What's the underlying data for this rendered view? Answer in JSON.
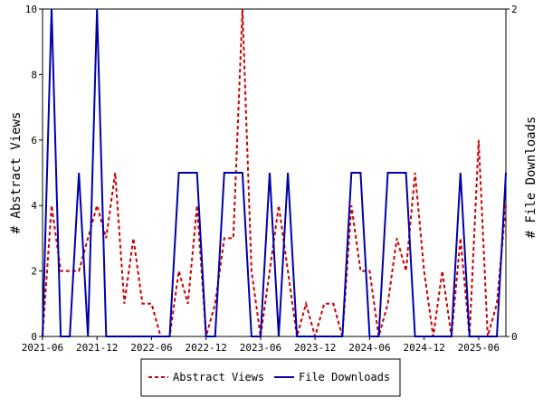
{
  "chart_data": {
    "type": "line",
    "ylabel_left": "# Abstract Views",
    "ylabel_right": "# File Downloads",
    "ylim_left": [
      0,
      10
    ],
    "ylim_right": [
      0,
      2
    ],
    "x_range": [
      0,
      51
    ],
    "yticks_left": [
      0,
      2,
      4,
      6,
      8,
      10
    ],
    "yticks_right": [
      0,
      2
    ],
    "xticks": [
      {
        "index": 0,
        "label": "2021-06"
      },
      {
        "index": 6,
        "label": "2021-12"
      },
      {
        "index": 12,
        "label": "2022-06"
      },
      {
        "index": 18,
        "label": "2022-12"
      },
      {
        "index": 24,
        "label": "2023-06"
      },
      {
        "index": 30,
        "label": "2023-12"
      },
      {
        "index": 36,
        "label": "2024-06"
      },
      {
        "index": 42,
        "label": "2024-12"
      },
      {
        "index": 48,
        "label": "2025-06"
      }
    ],
    "legend": {
      "placement": "bottom"
    },
    "series": [
      {
        "name": "Abstract Views",
        "axis": "left",
        "color": "#cc0000",
        "dash": true,
        "values": [
          0,
          4,
          2,
          2,
          2,
          3,
          4,
          3,
          5,
          1,
          3,
          1,
          1,
          0,
          0,
          2,
          1,
          4,
          0,
          1,
          3,
          3,
          10,
          2,
          0,
          2,
          4,
          2,
          0,
          1,
          0,
          1,
          1,
          0,
          4,
          2,
          2,
          0,
          1,
          3,
          2,
          5,
          2,
          0,
          2,
          0,
          3,
          0,
          6,
          0,
          1,
          4
        ]
      },
      {
        "name": "File Downloads",
        "axis": "right",
        "color": "#0000aa",
        "dash": false,
        "values": [
          0,
          2,
          0,
          0,
          1,
          0,
          2,
          0,
          0,
          0,
          0,
          0,
          0,
          0,
          0,
          1,
          1,
          1,
          0,
          0,
          1,
          1,
          1,
          0,
          0,
          1,
          0,
          1,
          0,
          0,
          0,
          0,
          0,
          0,
          1,
          1,
          0,
          0,
          1,
          1,
          1,
          0,
          0,
          0,
          0,
          0,
          1,
          0,
          0,
          0,
          0,
          1
        ]
      }
    ]
  }
}
